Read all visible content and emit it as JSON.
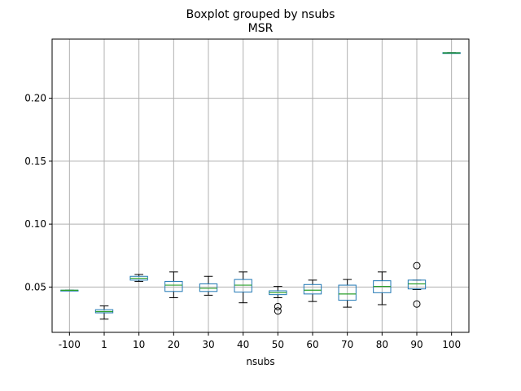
{
  "chart_data": {
    "type": "boxplot",
    "title": "Boxplot grouped by nsubs",
    "subtitle": "MSR",
    "xlabel": "nsubs",
    "ylabel": "",
    "categories": [
      "-100",
      "1",
      "10",
      "20",
      "30",
      "40",
      "50",
      "60",
      "70",
      "80",
      "90",
      "100"
    ],
    "boxes": [
      {
        "category": "-100",
        "whislo": 0.0473,
        "q1": 0.0473,
        "med": 0.0474,
        "q3": 0.0475,
        "whishi": 0.0475,
        "fliers": []
      },
      {
        "category": "1",
        "whislo": 0.0245,
        "q1": 0.0295,
        "med": 0.0305,
        "q3": 0.032,
        "whishi": 0.035,
        "fliers": []
      },
      {
        "category": "10",
        "whislo": 0.0545,
        "q1": 0.0555,
        "med": 0.057,
        "q3": 0.0585,
        "whishi": 0.06,
        "fliers": []
      },
      {
        "category": "20",
        "whislo": 0.0415,
        "q1": 0.0465,
        "med": 0.0515,
        "q3": 0.0545,
        "whishi": 0.062,
        "fliers": []
      },
      {
        "category": "30",
        "whislo": 0.0435,
        "q1": 0.0465,
        "med": 0.049,
        "q3": 0.0525,
        "whishi": 0.0585,
        "fliers": []
      },
      {
        "category": "40",
        "whislo": 0.0375,
        "q1": 0.046,
        "med": 0.0515,
        "q3": 0.056,
        "whishi": 0.062,
        "fliers": []
      },
      {
        "category": "50",
        "whislo": 0.0415,
        "q1": 0.044,
        "med": 0.0455,
        "q3": 0.047,
        "whishi": 0.0505,
        "fliers": [
          0.0345,
          0.031
        ]
      },
      {
        "category": "60",
        "whislo": 0.0385,
        "q1": 0.0445,
        "med": 0.0475,
        "q3": 0.052,
        "whishi": 0.0555,
        "fliers": []
      },
      {
        "category": "70",
        "whislo": 0.034,
        "q1": 0.0395,
        "med": 0.0445,
        "q3": 0.0515,
        "whishi": 0.056,
        "fliers": []
      },
      {
        "category": "80",
        "whislo": 0.036,
        "q1": 0.0455,
        "med": 0.0505,
        "q3": 0.055,
        "whishi": 0.062,
        "fliers": []
      },
      {
        "category": "90",
        "whislo": 0.048,
        "q1": 0.0485,
        "med": 0.0525,
        "q3": 0.0555,
        "whishi": 0.0555,
        "fliers": [
          0.067,
          0.0365
        ]
      },
      {
        "category": "100",
        "whislo": 0.2358,
        "q1": 0.2358,
        "med": 0.236,
        "q3": 0.2362,
        "whishi": 0.2362,
        "fliers": []
      }
    ],
    "yticks": [
      0.05,
      0.1,
      0.15,
      0.2
    ],
    "ytick_labels": [
      "0.05",
      "0.10",
      "0.15",
      "0.20"
    ],
    "ylim": [
      0.014,
      0.247
    ],
    "grid": true,
    "colors": {
      "box": "#1f77b4",
      "median": "#2ca02c",
      "whisker": "#000000",
      "grid": "#b0b0b0"
    }
  }
}
